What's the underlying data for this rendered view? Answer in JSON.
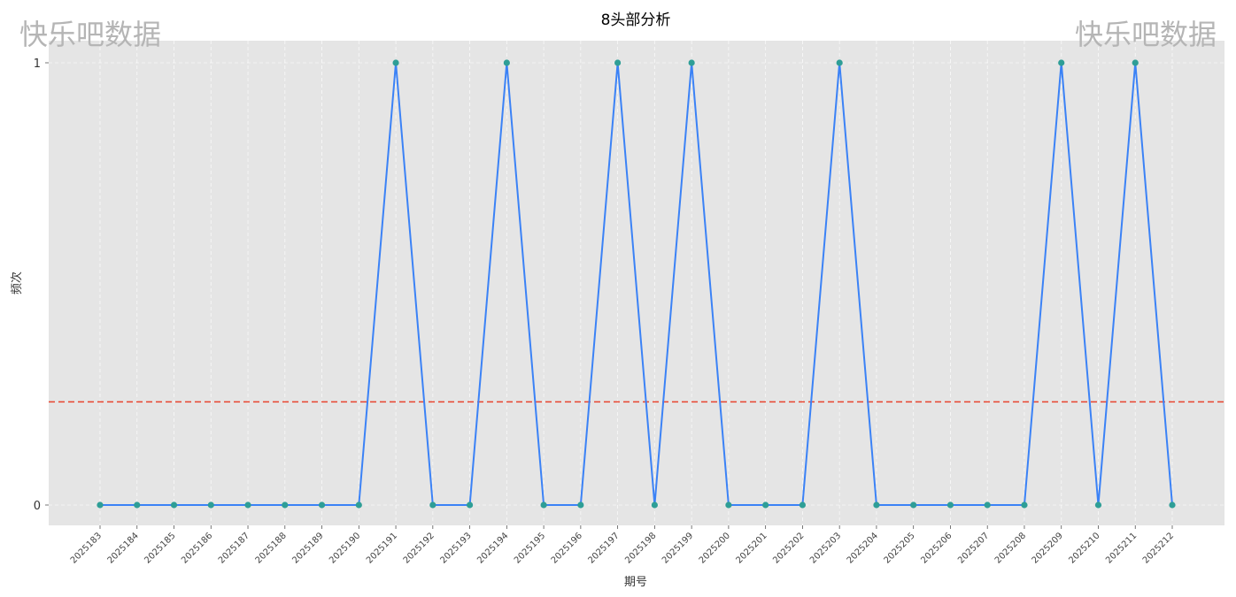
{
  "watermark": {
    "left": "快乐吧数据",
    "right": "快乐吧数据"
  },
  "chart_data": {
    "type": "line",
    "title": "8头部分析",
    "xlabel": "期号",
    "ylabel": "频次",
    "categories": [
      "2025183",
      "2025184",
      "2025185",
      "2025186",
      "2025187",
      "2025188",
      "2025189",
      "2025190",
      "2025191",
      "2025192",
      "2025193",
      "2025194",
      "2025195",
      "2025196",
      "2025197",
      "2025198",
      "2025199",
      "2025200",
      "2025201",
      "2025202",
      "2025203",
      "2025204",
      "2025205",
      "2025206",
      "2025207",
      "2025208",
      "2025209",
      "2025210",
      "2025211",
      "2025212"
    ],
    "series": [
      {
        "values": [
          0,
          0,
          0,
          0,
          0,
          0,
          0,
          0,
          1,
          0,
          0,
          1,
          0,
          0,
          1,
          0,
          1,
          0,
          0,
          0,
          1,
          0,
          0,
          0,
          0,
          0,
          1,
          0,
          1,
          0
        ]
      }
    ],
    "yticks": [
      "0",
      "1"
    ],
    "ylim": [
      -0.046,
      1.05
    ],
    "reference_line": {
      "y": 0.2333,
      "style": "dashed"
    },
    "grid": true,
    "colors": {
      "line": "#3b82f6",
      "marker": "#2e9e96",
      "reference": "#e8432d",
      "plot_bg": "#e5e5e5",
      "grid": "#ffffff"
    }
  }
}
